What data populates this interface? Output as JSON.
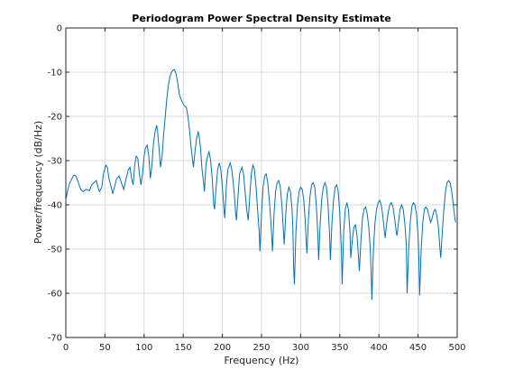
{
  "chart_data": {
    "type": "line",
    "title": "Periodogram Power Spectral Density Estimate",
    "xlabel": "Frequency (Hz)",
    "ylabel": "Power/frequency (dB/Hz)",
    "xlim": [
      0,
      500
    ],
    "ylim": [
      -70,
      0
    ],
    "xticks": [
      0,
      50,
      100,
      150,
      200,
      250,
      300,
      350,
      400,
      450,
      500
    ],
    "yticks": [
      0,
      -10,
      -20,
      -30,
      -40,
      -50,
      -60,
      -70
    ],
    "xtick_labels": [
      "0",
      "50",
      "100",
      "150",
      "200",
      "250",
      "300",
      "350",
      "400",
      "450",
      "500"
    ],
    "ytick_labels": [
      "0",
      "-10",
      "-20",
      "-30",
      "-40",
      "-50",
      "-60",
      "-70"
    ],
    "grid": true,
    "line_color": "#0072BD",
    "series": [
      {
        "points": [
          [
            0,
            -39
          ],
          [
            2,
            -37
          ],
          [
            5,
            -35
          ],
          [
            8,
            -34
          ],
          [
            10,
            -33.3
          ],
          [
            13,
            -33.5
          ],
          [
            16,
            -35
          ],
          [
            19,
            -36.5
          ],
          [
            22,
            -37
          ],
          [
            26,
            -36.5
          ],
          [
            30,
            -36.8
          ],
          [
            33,
            -35.5
          ],
          [
            36,
            -35
          ],
          [
            39,
            -34.5
          ],
          [
            41,
            -36
          ],
          [
            43,
            -37
          ],
          [
            46,
            -36
          ],
          [
            48,
            -33
          ],
          [
            51,
            -31
          ],
          [
            53,
            -31.5
          ],
          [
            55,
            -34
          ],
          [
            58,
            -36
          ],
          [
            60,
            -37.5
          ],
          [
            62,
            -36
          ],
          [
            65,
            -34
          ],
          [
            68,
            -33.5
          ],
          [
            71,
            -35
          ],
          [
            74,
            -36.5
          ],
          [
            77,
            -34
          ],
          [
            80,
            -32
          ],
          [
            82,
            -31.5
          ],
          [
            84,
            -34
          ],
          [
            86,
            -35.5
          ],
          [
            88,
            -31
          ],
          [
            90,
            -29
          ],
          [
            92,
            -29.5
          ],
          [
            94,
            -33
          ],
          [
            96,
            -35.5
          ],
          [
            98,
            -33
          ],
          [
            100,
            -29
          ],
          [
            102,
            -27
          ],
          [
            104,
            -26.5
          ],
          [
            106,
            -29
          ],
          [
            108,
            -34
          ],
          [
            110,
            -31
          ],
          [
            112,
            -26
          ],
          [
            114,
            -23.5
          ],
          [
            116,
            -22
          ],
          [
            117,
            -23
          ],
          [
            119,
            -27
          ],
          [
            121,
            -31.5
          ],
          [
            123,
            -29
          ],
          [
            125,
            -24
          ],
          [
            127,
            -20
          ],
          [
            129,
            -16
          ],
          [
            131,
            -13
          ],
          [
            133,
            -11
          ],
          [
            135,
            -10
          ],
          [
            137,
            -9.5
          ],
          [
            139,
            -9.5
          ],
          [
            141,
            -10.5
          ],
          [
            143,
            -12.5
          ],
          [
            145,
            -15
          ],
          [
            148,
            -16.5
          ],
          [
            151,
            -17.5
          ],
          [
            154,
            -18
          ],
          [
            156,
            -20
          ],
          [
            158,
            -23
          ],
          [
            160,
            -27
          ],
          [
            162,
            -30
          ],
          [
            163,
            -31.5
          ],
          [
            165,
            -28
          ],
          [
            167,
            -25
          ],
          [
            169,
            -23.5
          ],
          [
            170,
            -24
          ],
          [
            172,
            -27
          ],
          [
            174,
            -32
          ],
          [
            176,
            -35
          ],
          [
            177,
            -37
          ],
          [
            179,
            -31
          ],
          [
            181,
            -29
          ],
          [
            183,
            -28
          ],
          [
            185,
            -30
          ],
          [
            187,
            -34
          ],
          [
            189,
            -40
          ],
          [
            190,
            -41
          ],
          [
            192,
            -36
          ],
          [
            194,
            -32
          ],
          [
            196,
            -30.5
          ],
          [
            198,
            -32
          ],
          [
            200,
            -36
          ],
          [
            202,
            -41
          ],
          [
            203,
            -43
          ],
          [
            205,
            -36
          ],
          [
            207,
            -32
          ],
          [
            210,
            -30.5
          ],
          [
            212,
            -32
          ],
          [
            215,
            -37
          ],
          [
            217,
            -42
          ],
          [
            218,
            -43.5
          ],
          [
            220,
            -38
          ],
          [
            222,
            -33
          ],
          [
            225,
            -31.5
          ],
          [
            227,
            -33
          ],
          [
            229,
            -37
          ],
          [
            231,
            -41
          ],
          [
            233,
            -43.5
          ],
          [
            235,
            -38
          ],
          [
            237,
            -33
          ],
          [
            239,
            -31
          ],
          [
            241,
            -32
          ],
          [
            243,
            -36
          ],
          [
            245,
            -41
          ],
          [
            247,
            -46
          ],
          [
            248,
            -50.5
          ],
          [
            250,
            -42
          ],
          [
            252,
            -36
          ],
          [
            254,
            -33.5
          ],
          [
            256,
            -33
          ],
          [
            258,
            -35
          ],
          [
            260,
            -39
          ],
          [
            262,
            -44
          ],
          [
            263,
            -47
          ],
          [
            264,
            -50.5
          ],
          [
            266,
            -42
          ],
          [
            268,
            -37
          ],
          [
            270,
            -35
          ],
          [
            272,
            -34.5
          ],
          [
            274,
            -36
          ],
          [
            276,
            -40
          ],
          [
            278,
            -46
          ],
          [
            279,
            -49
          ],
          [
            281,
            -42
          ],
          [
            283,
            -37.5
          ],
          [
            285,
            -36
          ],
          [
            287,
            -37
          ],
          [
            289,
            -41
          ],
          [
            290,
            -45
          ],
          [
            291,
            -54
          ],
          [
            292,
            -58
          ],
          [
            294,
            -46
          ],
          [
            296,
            -40
          ],
          [
            298,
            -37
          ],
          [
            300,
            -36
          ],
          [
            302,
            -36.5
          ],
          [
            304,
            -39
          ],
          [
            306,
            -44
          ],
          [
            307,
            -48
          ],
          [
            308,
            -51
          ],
          [
            310,
            -43
          ],
          [
            312,
            -38
          ],
          [
            314,
            -35.5
          ],
          [
            316,
            -35
          ],
          [
            318,
            -36
          ],
          [
            320,
            -40
          ],
          [
            322,
            -47
          ],
          [
            323,
            -52.5
          ],
          [
            325,
            -44
          ],
          [
            327,
            -38.5
          ],
          [
            329,
            -36
          ],
          [
            331,
            -35
          ],
          [
            333,
            -36
          ],
          [
            335,
            -40
          ],
          [
            337,
            -47
          ],
          [
            338,
            -52.5
          ],
          [
            340,
            -44
          ],
          [
            342,
            -39
          ],
          [
            344,
            -36
          ],
          [
            346,
            -35.5
          ],
          [
            348,
            -37
          ],
          [
            350,
            -42
          ],
          [
            352,
            -50
          ],
          [
            353,
            -58
          ],
          [
            355,
            -46
          ],
          [
            357,
            -41
          ],
          [
            359,
            -39.5
          ],
          [
            361,
            -41
          ],
          [
            363,
            -46
          ],
          [
            364,
            -52
          ],
          [
            366,
            -48
          ],
          [
            368,
            -45
          ],
          [
            370,
            -44.5
          ],
          [
            372,
            -47
          ],
          [
            374,
            -52
          ],
          [
            375,
            -55
          ],
          [
            377,
            -48
          ],
          [
            379,
            -43
          ],
          [
            381,
            -41
          ],
          [
            383,
            -40.5
          ],
          [
            385,
            -42
          ],
          [
            387,
            -45
          ],
          [
            389,
            -50
          ],
          [
            390,
            -55
          ],
          [
            391,
            -61.5
          ],
          [
            393,
            -50
          ],
          [
            395,
            -44
          ],
          [
            397,
            -41
          ],
          [
            399,
            -39.5
          ],
          [
            401,
            -39
          ],
          [
            403,
            -40
          ],
          [
            405,
            -42.5
          ],
          [
            407,
            -46
          ],
          [
            408,
            -47.5
          ],
          [
            410,
            -44
          ],
          [
            412,
            -41.5
          ],
          [
            414,
            -40
          ],
          [
            416,
            -39.5
          ],
          [
            418,
            -40.5
          ],
          [
            420,
            -43
          ],
          [
            422,
            -46
          ],
          [
            423,
            -47
          ],
          [
            425,
            -44
          ],
          [
            427,
            -41
          ],
          [
            429,
            -40
          ],
          [
            431,
            -41
          ],
          [
            433,
            -44
          ],
          [
            435,
            -49
          ],
          [
            436,
            -60
          ],
          [
            438,
            -50
          ],
          [
            440,
            -44
          ],
          [
            442,
            -40.5
          ],
          [
            444,
            -39.5
          ],
          [
            446,
            -40
          ],
          [
            448,
            -42
          ],
          [
            450,
            -47
          ],
          [
            451,
            -52
          ],
          [
            452,
            -60.5
          ],
          [
            454,
            -50
          ],
          [
            456,
            -44
          ],
          [
            458,
            -41
          ],
          [
            460,
            -40.5
          ],
          [
            462,
            -41
          ],
          [
            464,
            -42.5
          ],
          [
            466,
            -44
          ],
          [
            468,
            -43
          ],
          [
            470,
            -41.5
          ],
          [
            472,
            -41
          ],
          [
            474,
            -42.5
          ],
          [
            476,
            -45
          ],
          [
            478,
            -50
          ],
          [
            479,
            -52
          ],
          [
            481,
            -46
          ],
          [
            483,
            -41
          ],
          [
            485,
            -37
          ],
          [
            487,
            -35
          ],
          [
            489,
            -34.5
          ],
          [
            491,
            -35
          ],
          [
            493,
            -37
          ],
          [
            495,
            -40
          ],
          [
            497,
            -43
          ],
          [
            498,
            -44
          ]
        ]
      }
    ]
  }
}
